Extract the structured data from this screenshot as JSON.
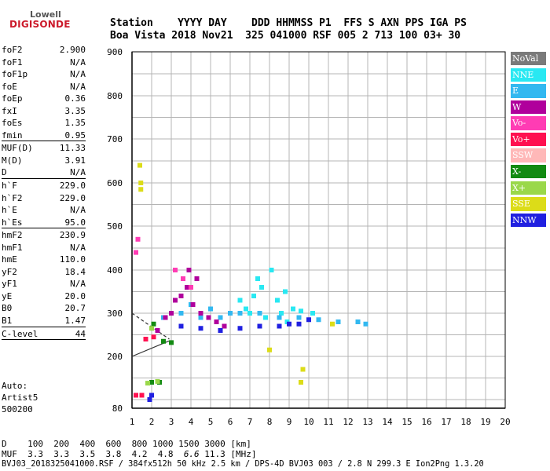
{
  "logo": {
    "top": "Lowell",
    "bottom": "DIGISONDE"
  },
  "header": {
    "line1": "Station    YYYY DAY    DDD HHMMSS P1  FFS S AXN PPS IGA PS",
    "line2": "Boa Vista 2018 Nov21  325 041000 RSF 005 2 713 100 03+ 30"
  },
  "params": [
    {
      "label": "foF2",
      "value": "2.900"
    },
    {
      "label": "foF1",
      "value": "N/A"
    },
    {
      "label": "foF1p",
      "value": "N/A"
    },
    {
      "label": "foE",
      "value": "N/A"
    },
    {
      "label": "foEp",
      "value": "0.36"
    },
    {
      "label": "fxI",
      "value": "3.35"
    },
    {
      "label": "foEs",
      "value": "1.35"
    },
    {
      "label": "fmin",
      "value": "0.95",
      "sep": true
    },
    {
      "label": "MUF(D)",
      "value": "11.33"
    },
    {
      "label": "M(D)",
      "value": "3.91"
    },
    {
      "label": "D",
      "value": "N/A",
      "sep": true
    },
    {
      "label": "h`F",
      "value": "229.0"
    },
    {
      "label": "h`F2",
      "value": "229.0"
    },
    {
      "label": "h`E",
      "value": "N/A"
    },
    {
      "label": "h`Es",
      "value": "95.0",
      "sep": true
    },
    {
      "label": "hmF2",
      "value": "230.9"
    },
    {
      "label": "hmF1",
      "value": "N/A"
    },
    {
      "label": "hmE",
      "value": "110.0"
    },
    {
      "label": "yF2",
      "value": "18.4"
    },
    {
      "label": "yF1",
      "value": "N/A"
    },
    {
      "label": "yE",
      "value": "20.0"
    },
    {
      "label": "B0",
      "value": "20.7"
    },
    {
      "label": "B1",
      "value": "1.47",
      "sep": true
    },
    {
      "label": "C-level",
      "value": "44",
      "sep": true
    }
  ],
  "auto": [
    "Auto:",
    "Artist5",
    "500200"
  ],
  "footer": {
    "line1": "D    100  200  400  600  800 1000 1500 3000 [km]",
    "muf_label": "MUF  ",
    "muf_values": "3.3  3.3  3.5  3.8  4.2  4.8  ",
    "muf_highlight": "6.6",
    "muf_rest": " 11.3 [MHz]",
    "line3": "BVJ03_2018325041000.RSF / 384fx512h 50 kHz 2.5 km / DPS-4D BVJ03 003 / 2.8 N 299.3 E Ion2Png 1.3.20"
  },
  "legend": [
    {
      "label": "NoVal",
      "color": "#7a7a7a"
    },
    {
      "label": "NNE",
      "color": "#29e8f2"
    },
    {
      "label": "E",
      "color": "#32b8f0"
    },
    {
      "label": "W",
      "color": "#b0009c"
    },
    {
      "label": "Vo-",
      "color": "#ff3cb4"
    },
    {
      "label": "Vo+",
      "color": "#ff1050"
    },
    {
      "label": "SSW",
      "color": "#ffb8b8"
    },
    {
      "label": "X-",
      "color": "#128a12"
    },
    {
      "label": "X+",
      "color": "#9ad84a"
    },
    {
      "label": "SSE",
      "color": "#dcdc18"
    },
    {
      "label": "NNW",
      "color": "#2020e0"
    }
  ],
  "chart_data": {
    "type": "scatter",
    "title": "",
    "xlabel": "",
    "ylabel": "",
    "xlim": [
      1,
      20
    ],
    "ylim": [
      80,
      900
    ],
    "xticks": [
      1,
      2,
      3,
      4,
      5,
      6,
      7,
      8,
      9,
      10,
      11,
      12,
      13,
      14,
      15,
      16,
      17,
      18,
      19,
      20
    ],
    "yticks": [
      80,
      200,
      300,
      400,
      500,
      600,
      700,
      800,
      900
    ],
    "grid": true,
    "series": [
      {
        "name": "NNE",
        "color": "#29e8f2",
        "points": [
          [
            6.8,
            310
          ],
          [
            7.2,
            340
          ],
          [
            7.6,
            360
          ],
          [
            8.1,
            400
          ],
          [
            8.4,
            330
          ],
          [
            8.8,
            350
          ],
          [
            9.2,
            310
          ],
          [
            7.0,
            300
          ],
          [
            7.8,
            290
          ],
          [
            8.6,
            300
          ],
          [
            9.6,
            305
          ],
          [
            10.2,
            300
          ],
          [
            6.5,
            330
          ],
          [
            7.4,
            380
          ],
          [
            8.9,
            280
          ]
        ]
      },
      {
        "name": "E",
        "color": "#32b8f0",
        "points": [
          [
            3.5,
            300
          ],
          [
            4.5,
            290
          ],
          [
            5.5,
            290
          ],
          [
            6.5,
            300
          ],
          [
            7.5,
            300
          ],
          [
            8.5,
            290
          ],
          [
            9.5,
            290
          ],
          [
            10.5,
            285
          ],
          [
            11.5,
            280
          ],
          [
            12.5,
            280
          ],
          [
            12.9,
            275
          ],
          [
            2.6,
            290
          ],
          [
            4.0,
            320
          ],
          [
            5.0,
            310
          ],
          [
            6.0,
            300
          ]
        ]
      },
      {
        "name": "W",
        "color": "#b0009c",
        "points": [
          [
            2.3,
            260
          ],
          [
            2.7,
            290
          ],
          [
            3.0,
            300
          ],
          [
            3.2,
            330
          ],
          [
            3.5,
            340
          ],
          [
            3.8,
            360
          ],
          [
            4.1,
            320
          ],
          [
            4.5,
            300
          ],
          [
            4.9,
            290
          ],
          [
            5.3,
            280
          ],
          [
            5.7,
            270
          ],
          [
            4.3,
            380
          ],
          [
            3.9,
            400
          ]
        ]
      },
      {
        "name": "Vo-",
        "color": "#ff3cb4",
        "points": [
          [
            3.2,
            400
          ],
          [
            3.6,
            380
          ],
          [
            4.0,
            360
          ],
          [
            1.3,
            470
          ],
          [
            1.2,
            440
          ]
        ]
      },
      {
        "name": "Vo+",
        "color": "#ff1050",
        "points": [
          [
            1.7,
            240
          ],
          [
            2.1,
            245
          ],
          [
            1.2,
            110
          ],
          [
            1.5,
            110
          ]
        ]
      },
      {
        "name": "X-",
        "color": "#128a12",
        "points": [
          [
            2.0,
            140
          ],
          [
            2.4,
            140
          ],
          [
            2.1,
            275
          ],
          [
            2.6,
            235
          ],
          [
            3.0,
            232
          ]
        ]
      },
      {
        "name": "X+",
        "color": "#9ad84a",
        "points": [
          [
            1.8,
            138
          ],
          [
            2.3,
            142
          ],
          [
            2.0,
            265
          ]
        ]
      },
      {
        "name": "SSE",
        "color": "#dcdc18",
        "points": [
          [
            1.4,
            640
          ],
          [
            1.45,
            600
          ],
          [
            1.45,
            585
          ],
          [
            9.7,
            170
          ],
          [
            9.6,
            140
          ],
          [
            8.0,
            215
          ],
          [
            11.2,
            275
          ]
        ]
      },
      {
        "name": "NNW",
        "color": "#2020e0",
        "points": [
          [
            5.5,
            260
          ],
          [
            6.5,
            265
          ],
          [
            7.5,
            270
          ],
          [
            8.5,
            270
          ],
          [
            9.0,
            275
          ],
          [
            9.5,
            275
          ],
          [
            10.0,
            285
          ],
          [
            3.5,
            270
          ],
          [
            4.5,
            265
          ],
          [
            2.0,
            110
          ],
          [
            1.9,
            100
          ]
        ]
      }
    ]
  }
}
